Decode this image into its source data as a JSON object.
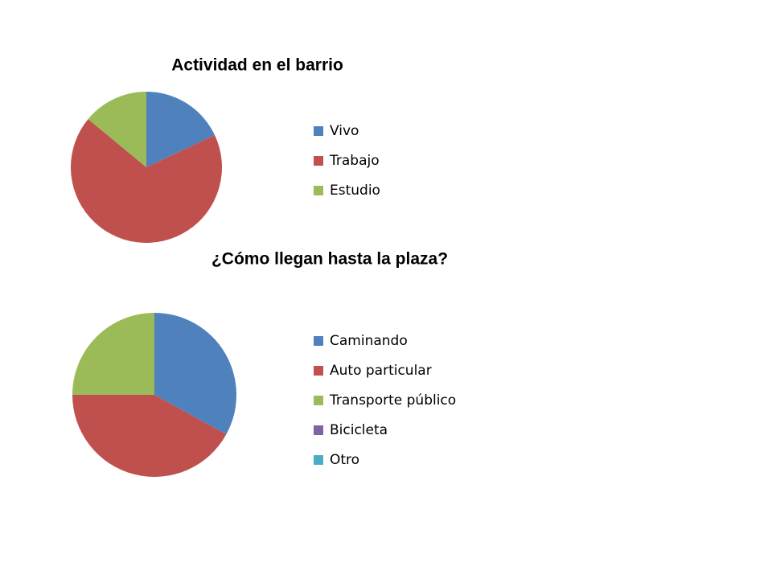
{
  "chart_data": [
    {
      "type": "pie",
      "title": "Actividad en el barrio",
      "categories": [
        "Vivo",
        "Trabajo",
        "Estudio"
      ],
      "values": [
        18,
        68,
        14
      ],
      "colors": [
        "#4f81bd",
        "#c0504d",
        "#9bbb59"
      ]
    },
    {
      "type": "pie",
      "title": "¿Cómo llegan hasta la plaza?",
      "categories": [
        "Caminando",
        "Auto particular",
        "Transporte público",
        "Bicicleta",
        "Otro"
      ],
      "values": [
        33,
        42,
        25,
        0,
        0
      ],
      "colors": [
        "#4f81bd",
        "#c0504d",
        "#9bbb59",
        "#8064a2",
        "#4bacc6"
      ]
    }
  ]
}
